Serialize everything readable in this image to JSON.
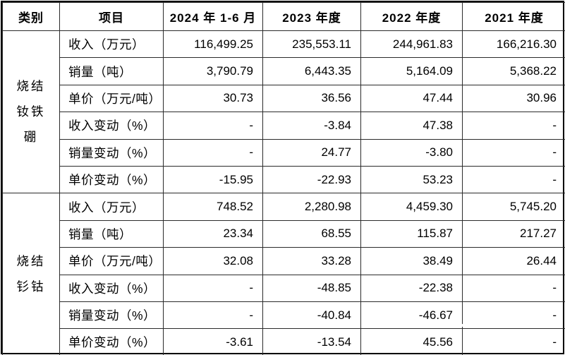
{
  "table": {
    "columns": [
      "类别",
      "项目",
      "2024 年 1-6 月",
      "2023 年度",
      "2022 年度",
      "2021 年度"
    ],
    "groups": [
      {
        "category": "烧结钕铁硼",
        "rows": [
          {
            "label": "收入（万元）",
            "values": [
              "116,499.25",
              "235,553.11",
              "244,961.83",
              "166,216.30"
            ]
          },
          {
            "label": "销量（吨）",
            "values": [
              "3,790.79",
              "6,443.35",
              "5,164.09",
              "5,368.22"
            ]
          },
          {
            "label": "单价（万元/吨）",
            "values": [
              "30.73",
              "36.56",
              "47.44",
              "30.96"
            ]
          },
          {
            "label": "收入变动（%）",
            "values": [
              "-",
              "-3.84",
              "47.38",
              "-"
            ]
          },
          {
            "label": "销量变动（%）",
            "values": [
              "-",
              "24.77",
              "-3.80",
              "-"
            ]
          },
          {
            "label": "单价变动（%）",
            "values": [
              "-15.95",
              "-22.93",
              "53.23",
              "-"
            ]
          }
        ]
      },
      {
        "category": "烧结钐钴",
        "rows": [
          {
            "label": "收入（万元）",
            "values": [
              "748.52",
              "2,280.98",
              "4,459.30",
              "5,745.20"
            ]
          },
          {
            "label": "销量（吨）",
            "values": [
              "23.34",
              "68.55",
              "115.87",
              "217.27"
            ]
          },
          {
            "label": "单价（万元/吨）",
            "values": [
              "32.08",
              "33.28",
              "38.49",
              "26.44"
            ]
          },
          {
            "label": "收入变动（%）",
            "values": [
              "-",
              "-48.85",
              "-22.38",
              "-"
            ]
          },
          {
            "label": "销量变动（%）",
            "values": [
              "-",
              "-40.84",
              "-46.67",
              "-"
            ]
          },
          {
            "label": "单价变动（%）",
            "values": [
              "-3.61",
              "-13.54",
              "45.56",
              "-"
            ]
          }
        ]
      }
    ]
  },
  "colors": {
    "text": "#000000",
    "border": "#2b2b2b",
    "background": "#ffffff"
  }
}
